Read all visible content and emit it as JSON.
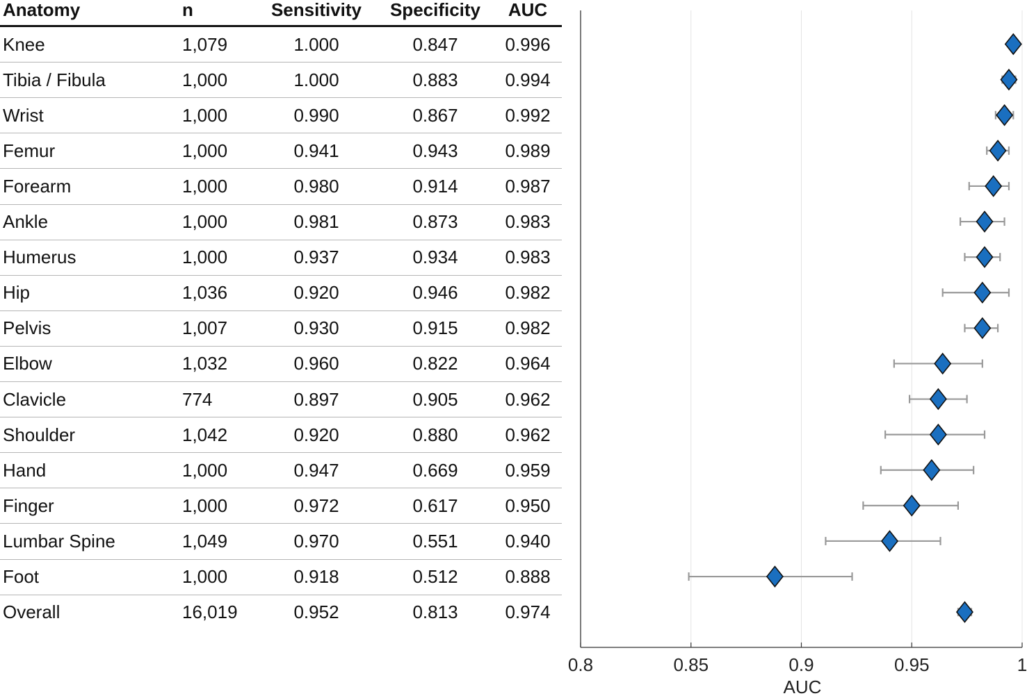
{
  "table": {
    "columns": [
      "Anatomy",
      "n",
      "Sensitivity",
      "Specificity",
      "AUC"
    ],
    "rows": [
      [
        "Knee",
        "1,079",
        "1.000",
        "0.847",
        "0.996"
      ],
      [
        "Tibia / Fibula",
        "1,000",
        "1.000",
        "0.883",
        "0.994"
      ],
      [
        "Wrist",
        "1,000",
        "0.990",
        "0.867",
        "0.992"
      ],
      [
        "Femur",
        "1,000",
        "0.941",
        "0.943",
        "0.989"
      ],
      [
        "Forearm",
        "1,000",
        "0.980",
        "0.914",
        "0.987"
      ],
      [
        "Ankle",
        "1,000",
        "0.981",
        "0.873",
        "0.983"
      ],
      [
        "Humerus",
        "1,000",
        "0.937",
        "0.934",
        "0.983"
      ],
      [
        "Hip",
        "1,036",
        "0.920",
        "0.946",
        "0.982"
      ],
      [
        "Pelvis",
        "1,007",
        "0.930",
        "0.915",
        "0.982"
      ],
      [
        "Elbow",
        "1,032",
        "0.960",
        "0.822",
        "0.964"
      ],
      [
        "Clavicle",
        "774",
        "0.897",
        "0.905",
        "0.962"
      ],
      [
        "Shoulder",
        "1,042",
        "0.920",
        "0.880",
        "0.962"
      ],
      [
        "Hand",
        "1,000",
        "0.947",
        "0.669",
        "0.959"
      ],
      [
        "Finger",
        "1,000",
        "0.972",
        "0.617",
        "0.950"
      ],
      [
        "Lumbar Spine",
        "1,049",
        "0.970",
        "0.551",
        "0.940"
      ],
      [
        "Foot",
        "1,000",
        "0.918",
        "0.512",
        "0.888"
      ],
      [
        "Overall",
        "16,019",
        "0.952",
        "0.813",
        "0.974"
      ]
    ]
  },
  "chart_data": {
    "type": "scatter",
    "xlabel": "AUC",
    "xlim": [
      0.8,
      1.0
    ],
    "xticks": [
      0.8,
      0.85,
      0.9,
      0.95,
      1.0
    ],
    "xtick_labels": [
      "0.8",
      "0.85",
      "0.9",
      "0.95",
      "1"
    ],
    "grid": "vertical",
    "marker": "diamond",
    "marker_color": "#1a6fc0",
    "errorbar_color": "#999999",
    "categories": [
      "Knee",
      "Tibia / Fibula",
      "Wrist",
      "Femur",
      "Forearm",
      "Ankle",
      "Humerus",
      "Hip",
      "Pelvis",
      "Elbow",
      "Clavicle",
      "Shoulder",
      "Hand",
      "Finger",
      "Lumbar Spine",
      "Foot",
      "Overall"
    ],
    "values": [
      0.996,
      0.994,
      0.992,
      0.989,
      0.987,
      0.983,
      0.983,
      0.982,
      0.982,
      0.964,
      0.962,
      0.962,
      0.959,
      0.95,
      0.94,
      0.888,
      0.974
    ],
    "ci_low": [
      0.994,
      0.991,
      0.988,
      0.984,
      0.976,
      0.972,
      0.974,
      0.964,
      0.974,
      0.942,
      0.949,
      0.938,
      0.936,
      0.928,
      0.911,
      0.849,
      0.971
    ],
    "ci_high": [
      0.998,
      0.997,
      0.996,
      0.994,
      0.994,
      0.992,
      0.99,
      0.994,
      0.989,
      0.982,
      0.975,
      0.983,
      0.978,
      0.971,
      0.963,
      0.923,
      0.977
    ]
  }
}
